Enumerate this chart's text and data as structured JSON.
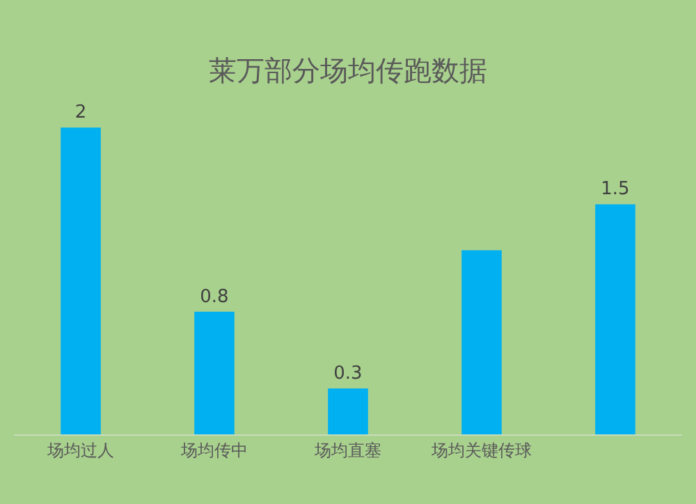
{
  "chart_data": {
    "type": "bar",
    "title": "莱万部分场均传跑数据",
    "categories": [
      "场均过人",
      "场均传中",
      "场均直塞",
      "场均关键传球",
      null
    ],
    "values": [
      2,
      0.8,
      0.3,
      1.2,
      1.5
    ],
    "value_labels": [
      "2",
      "0.8",
      "0.3",
      null,
      "1.5"
    ],
    "color": "#00b0f0",
    "tick_labels": "x",
    "grid": false,
    "legend": false
  }
}
